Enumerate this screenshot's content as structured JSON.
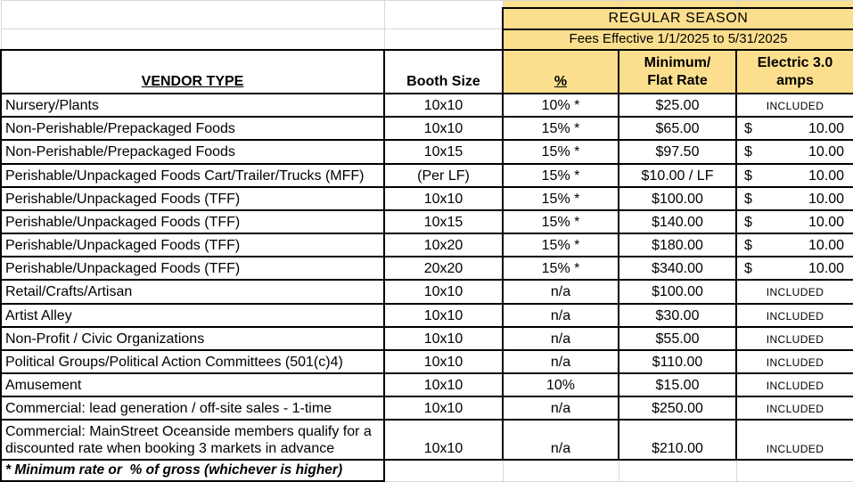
{
  "table": {
    "season_title": "REGULAR SEASON",
    "effective_line": "Fees Effective 1/1/2025 to 5/31/2025",
    "headers": {
      "vendor_type": "VENDOR TYPE",
      "booth_size": "Booth Size",
      "percent": "%",
      "min_flat_rate": "Minimum/ Flat Rate",
      "electric": "Electric 3.0 amps"
    },
    "rows": [
      {
        "vendor": "Nursery/Plants",
        "booth": "10x10",
        "percent": "10% *",
        "rate": "$25.00",
        "electric": {
          "type": "included",
          "text": "INCLUDED"
        }
      },
      {
        "vendor": "Non-Perishable/Prepackaged Foods",
        "booth": "10x10",
        "percent": "15% *",
        "rate": "$65.00",
        "electric": {
          "type": "accounting",
          "symbol": "$",
          "amount": "10.00"
        }
      },
      {
        "vendor": "Non-Perishable/Prepackaged Foods",
        "booth": "10x15",
        "percent": "15% *",
        "rate": "$97.50",
        "electric": {
          "type": "accounting",
          "symbol": "$",
          "amount": "10.00"
        }
      },
      {
        "vendor": "Perishable/Unpackaged Foods Cart/Trailer/Trucks (MFF)",
        "booth": "(Per LF)",
        "percent": "15% *",
        "rate": "$10.00 / LF",
        "electric": {
          "type": "accounting",
          "symbol": "$",
          "amount": "10.00"
        }
      },
      {
        "vendor": "Perishable/Unpackaged Foods (TFF)",
        "booth": "10x10",
        "percent": "15% *",
        "rate": "$100.00",
        "electric": {
          "type": "accounting",
          "symbol": "$",
          "amount": "10.00"
        }
      },
      {
        "vendor": "Perishable/Unpackaged Foods (TFF)",
        "booth": "10x15",
        "percent": "15% *",
        "rate": "$140.00",
        "electric": {
          "type": "accounting",
          "symbol": "$",
          "amount": "10.00"
        }
      },
      {
        "vendor": "Perishable/Unpackaged Foods (TFF)",
        "booth": "10x20",
        "percent": "15% *",
        "rate": "$180.00",
        "electric": {
          "type": "accounting",
          "symbol": "$",
          "amount": "10.00"
        }
      },
      {
        "vendor": "Perishable/Unpackaged Foods (TFF)",
        "booth": "20x20",
        "percent": "15% *",
        "rate": "$340.00",
        "electric": {
          "type": "accounting",
          "symbol": "$",
          "amount": "10.00"
        }
      },
      {
        "vendor": "Retail/Crafts/Artisan",
        "booth": "10x10",
        "percent": "n/a",
        "rate": "$100.00",
        "electric": {
          "type": "included",
          "text": "INCLUDED"
        }
      },
      {
        "vendor": "Artist Alley",
        "booth": "10x10",
        "percent": "n/a",
        "rate": "$30.00",
        "electric": {
          "type": "included",
          "text": "INCLUDED"
        }
      },
      {
        "vendor": "Non-Profit / Civic Organizations",
        "booth": "10x10",
        "percent": "n/a",
        "rate": "$55.00",
        "electric": {
          "type": "included",
          "text": "INCLUDED"
        }
      },
      {
        "vendor": "Political Groups/Political Action Committees (501(c)4)",
        "booth": "10x10",
        "percent": "n/a",
        "rate": "$110.00",
        "electric": {
          "type": "included",
          "text": "INCLUDED"
        }
      },
      {
        "vendor": "Amusement",
        "booth": "10x10",
        "percent": "10%",
        "rate": "$15.00",
        "electric": {
          "type": "included",
          "text": "INCLUDED"
        }
      },
      {
        "vendor": "Commercial: lead generation / off-site sales - 1-time",
        "booth": "10x10",
        "percent": "n/a",
        "rate": "$250.00",
        "electric": {
          "type": "included",
          "text": "INCLUDED"
        }
      },
      {
        "vendor": "Commercial: MainStreet Oceanside members qualify for a discounted rate when booking 3 markets in advance",
        "booth": "10x10",
        "percent": "n/a",
        "rate": "$210.00",
        "electric": {
          "type": "included",
          "text": "INCLUDED"
        }
      }
    ],
    "footnote": "* Minimum rate or  % of gross (whichever is higher)"
  },
  "colors": {
    "highlight": "#FCDF8E",
    "border": "#000000",
    "gridline": "#D8D8D8"
  }
}
